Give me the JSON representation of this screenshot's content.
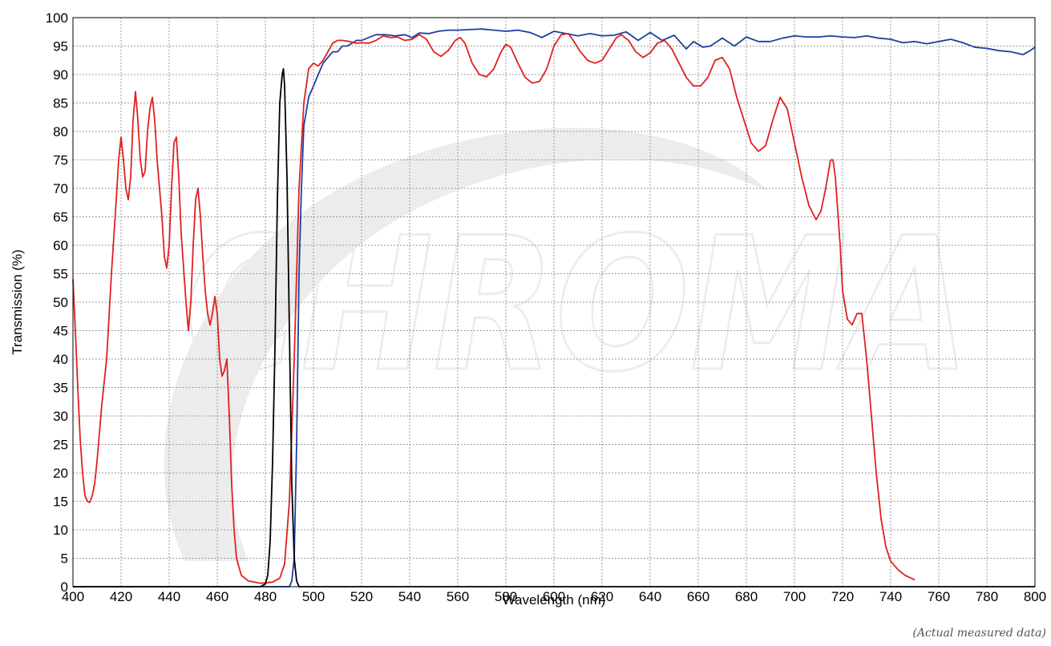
{
  "note": "(Actual measured data)",
  "watermark": "CHROMA",
  "chart_data": {
    "type": "line",
    "title": "",
    "xlabel": "Wavelength (nm)",
    "ylabel": "Transmission (%)",
    "xlim": [
      400,
      800
    ],
    "ylim": [
      0,
      100
    ],
    "xticks": [
      400,
      420,
      440,
      460,
      480,
      500,
      520,
      540,
      560,
      580,
      600,
      620,
      640,
      660,
      680,
      700,
      720,
      740,
      760,
      780,
      800
    ],
    "yticks": [
      0,
      5,
      10,
      15,
      20,
      25,
      30,
      35,
      40,
      45,
      50,
      55,
      60,
      65,
      70,
      75,
      80,
      85,
      90,
      95,
      100
    ],
    "grid": true,
    "legend": "none",
    "series": [
      {
        "color": "#1f3f9f",
        "points": [
          [
            400,
            0
          ],
          [
            480,
            0
          ],
          [
            490,
            0
          ],
          [
            491,
            1
          ],
          [
            492,
            5
          ],
          [
            493,
            25
          ],
          [
            494,
            55
          ],
          [
            495,
            70
          ],
          [
            496,
            81
          ],
          [
            498,
            86
          ],
          [
            500,
            88
          ],
          [
            502,
            90
          ],
          [
            504,
            92
          ],
          [
            506,
            93
          ],
          [
            508,
            94
          ],
          [
            510,
            94
          ],
          [
            512,
            95
          ],
          [
            514,
            95
          ],
          [
            516,
            95.5
          ],
          [
            518,
            96
          ],
          [
            520,
            96
          ],
          [
            523,
            96.5
          ],
          [
            526,
            97
          ],
          [
            530,
            97
          ],
          [
            534,
            96.8
          ],
          [
            538,
            97
          ],
          [
            541,
            96.5
          ],
          [
            544,
            97.3
          ],
          [
            548,
            97.2
          ],
          [
            552,
            97.6
          ],
          [
            556,
            97.8
          ],
          [
            560,
            97.8
          ],
          [
            565,
            97.9
          ],
          [
            570,
            98
          ],
          [
            575,
            97.8
          ],
          [
            580,
            97.6
          ],
          [
            585,
            97.8
          ],
          [
            590,
            97.4
          ],
          [
            595,
            96.5
          ],
          [
            600,
            97.6
          ],
          [
            605,
            97.2
          ],
          [
            610,
            96.8
          ],
          [
            615,
            97.2
          ],
          [
            620,
            96.8
          ],
          [
            625,
            96.9
          ],
          [
            630,
            97.5
          ],
          [
            635,
            96
          ],
          [
            640,
            97.4
          ],
          [
            645,
            96
          ],
          [
            650,
            96.9
          ],
          [
            655,
            94.5
          ],
          [
            658,
            95.8
          ],
          [
            662,
            94.8
          ],
          [
            665,
            95
          ],
          [
            670,
            96.4
          ],
          [
            675,
            95
          ],
          [
            680,
            96.6
          ],
          [
            685,
            95.8
          ],
          [
            690,
            95.8
          ],
          [
            695,
            96.4
          ],
          [
            700,
            96.8
          ],
          [
            705,
            96.6
          ],
          [
            710,
            96.6
          ],
          [
            715,
            96.8
          ],
          [
            720,
            96.6
          ],
          [
            725,
            96.5
          ],
          [
            730,
            96.8
          ],
          [
            735,
            96.4
          ],
          [
            740,
            96.2
          ],
          [
            745,
            95.6
          ],
          [
            750,
            95.8
          ],
          [
            755,
            95.4
          ],
          [
            760,
            95.8
          ],
          [
            765,
            96.2
          ],
          [
            770,
            95.6
          ],
          [
            775,
            94.8
          ],
          [
            780,
            94.6
          ],
          [
            785,
            94.2
          ],
          [
            790,
            94
          ],
          [
            795,
            93.5
          ],
          [
            798,
            94.2
          ],
          [
            800,
            94.8
          ]
        ]
      },
      {
        "color": "#e02020",
        "points": [
          [
            400,
            54
          ],
          [
            401,
            45
          ],
          [
            402,
            35
          ],
          [
            403,
            26
          ],
          [
            404,
            20
          ],
          [
            405,
            16
          ],
          [
            406,
            15
          ],
          [
            407,
            14.8
          ],
          [
            408,
            16
          ],
          [
            409,
            18
          ],
          [
            410,
            22
          ],
          [
            412,
            32
          ],
          [
            414,
            40
          ],
          [
            416,
            55
          ],
          [
            418,
            68
          ],
          [
            419,
            75
          ],
          [
            420,
            79
          ],
          [
            421,
            75
          ],
          [
            422,
            70
          ],
          [
            423,
            68
          ],
          [
            424,
            72
          ],
          [
            425,
            82
          ],
          [
            426,
            87
          ],
          [
            427,
            82
          ],
          [
            428,
            75
          ],
          [
            429,
            72
          ],
          [
            430,
            73
          ],
          [
            431,
            80
          ],
          [
            432,
            84
          ],
          [
            433,
            86
          ],
          [
            434,
            82
          ],
          [
            435,
            75
          ],
          [
            436,
            70
          ],
          [
            437,
            65
          ],
          [
            438,
            58
          ],
          [
            439,
            56
          ],
          [
            440,
            60
          ],
          [
            441,
            70
          ],
          [
            442,
            78
          ],
          [
            443,
            79
          ],
          [
            444,
            72
          ],
          [
            445,
            62
          ],
          [
            446,
            56
          ],
          [
            447,
            50
          ],
          [
            448,
            45
          ],
          [
            449,
            50
          ],
          [
            450,
            60
          ],
          [
            451,
            68
          ],
          [
            452,
            70
          ],
          [
            453,
            65
          ],
          [
            454,
            58
          ],
          [
            455,
            52
          ],
          [
            456,
            48
          ],
          [
            457,
            46
          ],
          [
            458,
            48
          ],
          [
            459,
            51
          ],
          [
            460,
            48
          ],
          [
            461,
            40
          ],
          [
            462,
            37
          ],
          [
            463,
            38
          ],
          [
            464,
            40
          ],
          [
            465,
            30
          ],
          [
            466,
            18
          ],
          [
            467,
            10
          ],
          [
            468,
            5
          ],
          [
            470,
            2
          ],
          [
            473,
            1
          ],
          [
            478,
            0.6
          ],
          [
            483,
            0.8
          ],
          [
            486,
            1.5
          ],
          [
            488,
            4
          ],
          [
            490,
            15
          ],
          [
            492,
            40
          ],
          [
            494,
            70
          ],
          [
            496,
            85
          ],
          [
            498,
            91
          ],
          [
            500,
            92
          ],
          [
            502,
            91.5
          ],
          [
            504,
            92.5
          ],
          [
            506,
            94
          ],
          [
            508,
            95.5
          ],
          [
            510,
            96
          ],
          [
            512,
            96
          ],
          [
            515,
            95.8
          ],
          [
            518,
            95.5
          ],
          [
            520,
            95.6
          ],
          [
            523,
            95.5
          ],
          [
            526,
            96
          ],
          [
            529,
            96.8
          ],
          [
            532,
            96.5
          ],
          [
            535,
            96.6
          ],
          [
            538,
            96
          ],
          [
            541,
            96.2
          ],
          [
            544,
            97
          ],
          [
            547,
            96.2
          ],
          [
            550,
            94
          ],
          [
            553,
            93.2
          ],
          [
            556,
            94.2
          ],
          [
            559,
            96
          ],
          [
            561,
            96.5
          ],
          [
            563,
            95.5
          ],
          [
            566,
            92
          ],
          [
            569,
            90
          ],
          [
            572,
            89.6
          ],
          [
            575,
            91
          ],
          [
            578,
            94
          ],
          [
            580,
            95.3
          ],
          [
            582,
            94.8
          ],
          [
            585,
            92
          ],
          [
            588,
            89.5
          ],
          [
            591,
            88.5
          ],
          [
            594,
            88.8
          ],
          [
            597,
            91
          ],
          [
            600,
            95
          ],
          [
            603,
            97
          ],
          [
            606,
            97.2
          ],
          [
            608,
            96
          ],
          [
            611,
            94
          ],
          [
            614,
            92.5
          ],
          [
            617,
            92
          ],
          [
            620,
            92.5
          ],
          [
            623,
            94.5
          ],
          [
            626,
            96.5
          ],
          [
            628,
            97
          ],
          [
            631,
            96
          ],
          [
            634,
            94
          ],
          [
            637,
            93
          ],
          [
            640,
            93.8
          ],
          [
            643,
            95.5
          ],
          [
            646,
            96
          ],
          [
            649,
            94.5
          ],
          [
            652,
            92
          ],
          [
            655,
            89.5
          ],
          [
            658,
            88
          ],
          [
            661,
            88
          ],
          [
            664,
            89.5
          ],
          [
            667,
            92.5
          ],
          [
            670,
            93
          ],
          [
            673,
            91
          ],
          [
            676,
            86
          ],
          [
            679,
            82
          ],
          [
            682,
            78
          ],
          [
            685,
            76.5
          ],
          [
            688,
            77.5
          ],
          [
            691,
            82
          ],
          [
            694,
            86
          ],
          [
            697,
            84
          ],
          [
            700,
            78
          ],
          [
            703,
            72
          ],
          [
            706,
            67
          ],
          [
            709,
            64.5
          ],
          [
            711,
            66
          ],
          [
            713,
            70
          ],
          [
            715,
            75
          ],
          [
            716,
            75
          ],
          [
            717,
            72
          ],
          [
            719,
            60
          ],
          [
            720,
            52
          ],
          [
            722,
            47
          ],
          [
            724,
            46
          ],
          [
            726,
            48
          ],
          [
            728,
            48
          ],
          [
            730,
            40
          ],
          [
            732,
            30
          ],
          [
            734,
            20
          ],
          [
            736,
            12
          ],
          [
            738,
            7
          ],
          [
            740,
            4.5
          ],
          [
            743,
            3
          ],
          [
            746,
            2
          ],
          [
            750,
            1.2
          ]
        ]
      },
      {
        "color": "#000000",
        "points": [
          [
            400,
            0
          ],
          [
            478,
            0
          ],
          [
            480,
            0.5
          ],
          [
            481,
            2
          ],
          [
            482,
            8
          ],
          [
            483,
            22
          ],
          [
            484,
            42
          ],
          [
            485,
            68
          ],
          [
            486,
            85
          ],
          [
            487,
            90
          ],
          [
            487.5,
            91
          ],
          [
            488,
            88
          ],
          [
            489,
            72
          ],
          [
            490,
            45
          ],
          [
            491,
            18
          ],
          [
            492,
            5
          ],
          [
            493,
            1
          ],
          [
            494,
            0
          ],
          [
            800,
            0
          ]
        ]
      }
    ]
  }
}
